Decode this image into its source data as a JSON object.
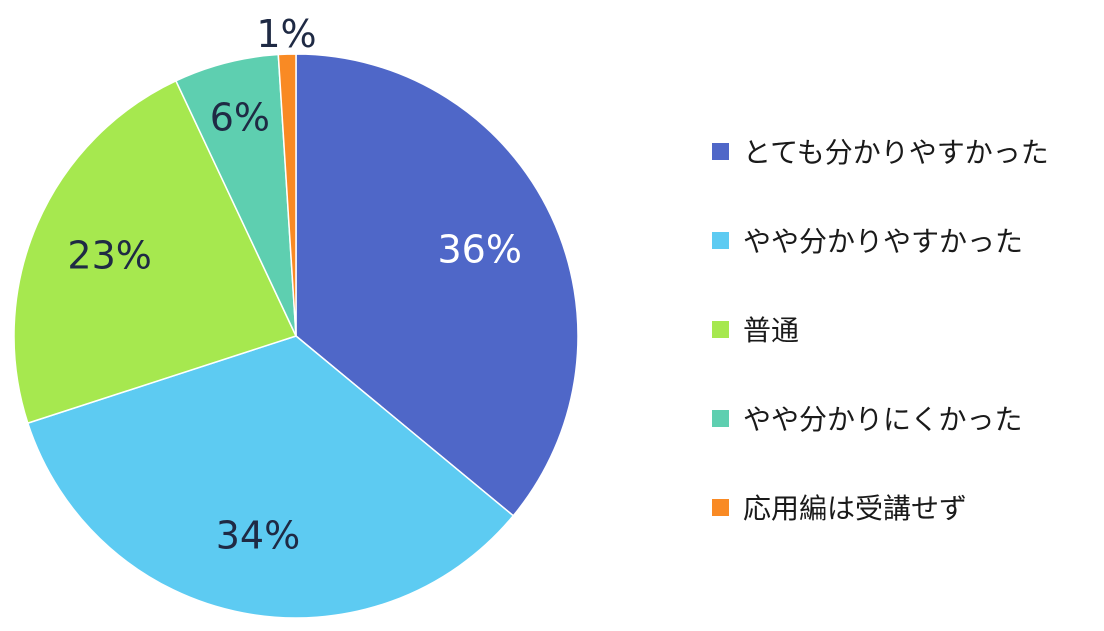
{
  "chart_data": {
    "type": "pie",
    "categories": [
      "とても分かりやすかった",
      "やや分かりやすかった",
      "普通",
      "やや分かりにくかった",
      "応用編は受講せず"
    ],
    "values": [
      36,
      34,
      23,
      6,
      1
    ],
    "labels": [
      "36%",
      "34%",
      "23%",
      "6%",
      "1%"
    ],
    "colors": [
      "#4F67C8",
      "#5DCBF2",
      "#A6E84F",
      "#5ECFB0",
      "#F98A24"
    ],
    "label_colors": [
      "#ffffff",
      "#1F2A44",
      "#1F2A44",
      "#1F2A44",
      "#1F2A44"
    ],
    "legend_position": "right",
    "start": "12 o'clock",
    "direction": "clockwise"
  }
}
